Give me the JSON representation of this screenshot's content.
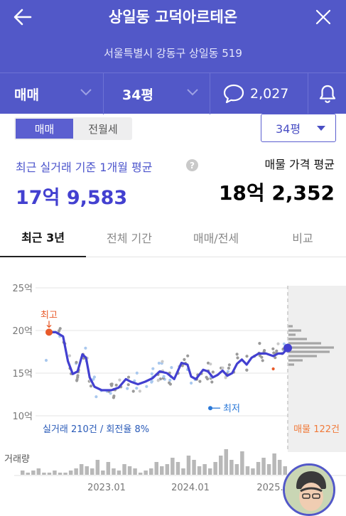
{
  "header": {
    "title": "상일동 고덕아르테온",
    "address": "서울특별시 강동구 상일동 519",
    "filters": {
      "type": "매매",
      "size": "34평",
      "comment_count": "2,027"
    }
  },
  "segment": {
    "active": "매매",
    "inactive": "전월세"
  },
  "size_dropdown": "34평",
  "summary": {
    "recent_label": "최근 실거래 기준 1개월 평균",
    "recent_value": "17억 9,583",
    "listing_label": "매물 가격 평균",
    "listing_value": "18억 2,352"
  },
  "tabs": [
    {
      "label": "최근 3년",
      "active": true
    },
    {
      "label": "전체 기간",
      "active": false
    },
    {
      "label": "매매/전세",
      "active": false
    },
    {
      "label": "비교",
      "active": false
    }
  ],
  "colors": {
    "header": "#5258c8",
    "line": "#4340d0",
    "highest": "#e85a2a",
    "lowest": "#2a78d8",
    "listing": "#f07a3a"
  },
  "chart_data": {
    "type": "line",
    "y_ticks": [
      "25억",
      "20억",
      "15억",
      "10억"
    ],
    "ylim": [
      10,
      25
    ],
    "x_ticks": [
      "2023.01",
      "2024.01",
      "2025."
    ],
    "grid": true,
    "annotations": {
      "highest": "최고",
      "lowest": "최저"
    },
    "footer_left": "실거래 210건 / 회전율 8%",
    "footer_right": "매물 122건",
    "volume_label": "거래량",
    "series": [
      {
        "points": [
          [
            0,
            19.8
          ],
          [
            0.04,
            19.8
          ],
          [
            0.07,
            19.3
          ],
          [
            0.09,
            16.4
          ],
          [
            0.11,
            14.9
          ],
          [
            0.13,
            15.2
          ],
          [
            0.15,
            17.2
          ],
          [
            0.165,
            16.8
          ],
          [
            0.18,
            14.5
          ],
          [
            0.2,
            13.4
          ],
          [
            0.23,
            13.0
          ],
          [
            0.27,
            13.0
          ],
          [
            0.3,
            13.3
          ],
          [
            0.33,
            14.3
          ],
          [
            0.35,
            14.0
          ],
          [
            0.38,
            13.7
          ],
          [
            0.41,
            14.0
          ],
          [
            0.44,
            14.4
          ],
          [
            0.47,
            15.2
          ],
          [
            0.5,
            15.0
          ],
          [
            0.53,
            14.3
          ],
          [
            0.56,
            16.2
          ],
          [
            0.585,
            16.0
          ],
          [
            0.6,
            14.6
          ],
          [
            0.62,
            14.3
          ],
          [
            0.65,
            15.4
          ],
          [
            0.67,
            15.2
          ],
          [
            0.69,
            14.5
          ],
          [
            0.71,
            14.8
          ],
          [
            0.73,
            15.3
          ],
          [
            0.75,
            14.7
          ],
          [
            0.77,
            15.0
          ],
          [
            0.79,
            16.1
          ],
          [
            0.81,
            16.6
          ],
          [
            0.83,
            16.0
          ],
          [
            0.85,
            16.8
          ],
          [
            0.88,
            17.3
          ],
          [
            0.91,
            17.3
          ],
          [
            0.94,
            17.0
          ],
          [
            0.96,
            17.3
          ],
          [
            0.98,
            17.3
          ],
          [
            1.0,
            17.95
          ]
        ]
      }
    ]
  }
}
